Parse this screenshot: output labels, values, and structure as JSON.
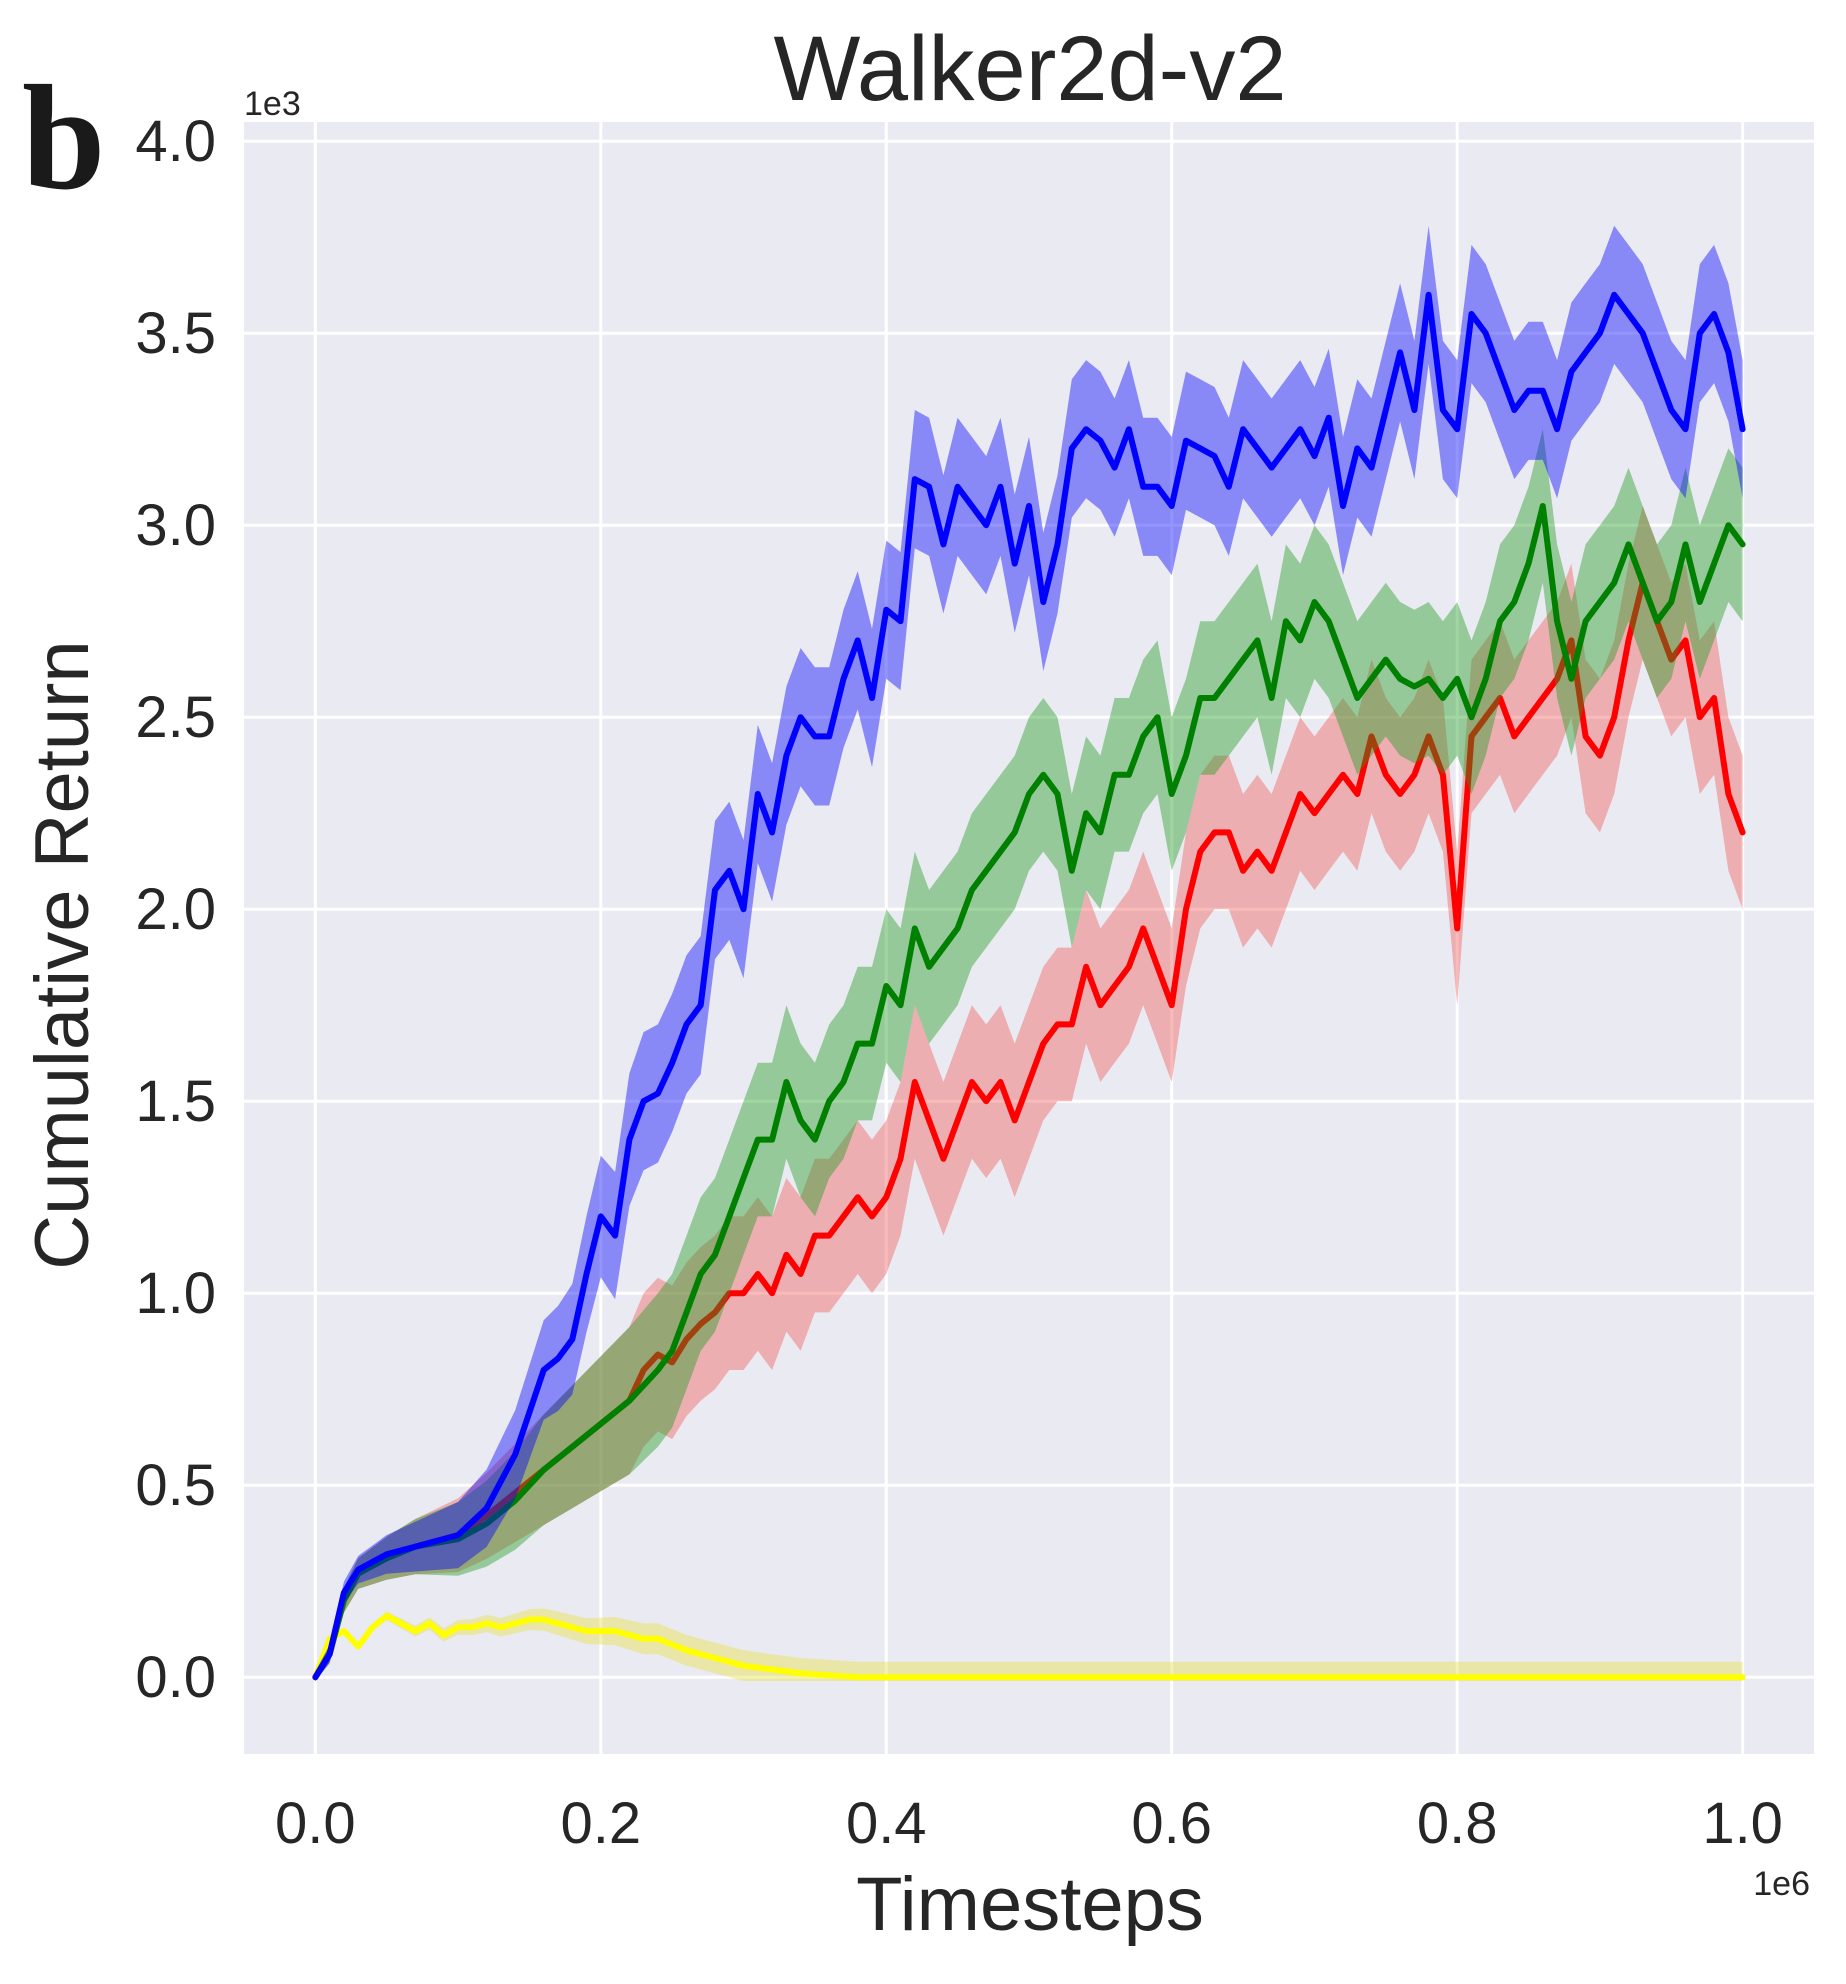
{
  "panel_label": "b",
  "chart_data": {
    "type": "line",
    "title": "Walker2d-v2",
    "xlabel": "Timesteps",
    "ylabel": "Cumulative Return",
    "x_multiplier_label": "1e6",
    "y_multiplier_label": "1e3",
    "xlim": [
      -0.05,
      1.05
    ],
    "ylim": [
      -0.2,
      4.05
    ],
    "x_ticks": [
      0.0,
      0.2,
      0.4,
      0.6,
      0.8,
      1.0
    ],
    "x_tick_labels": [
      "0.0",
      "0.2",
      "0.4",
      "0.6",
      "0.8",
      "1.0"
    ],
    "y_ticks": [
      0.0,
      0.5,
      1.0,
      1.5,
      2.0,
      2.5,
      3.0,
      3.5,
      4.0
    ],
    "y_tick_labels": [
      "0.0",
      "0.5",
      "1.0",
      "1.5",
      "2.0",
      "2.5",
      "3.0",
      "3.5",
      "4.0"
    ],
    "grid": true,
    "legend": "none",
    "background_color": "#eaeaf2",
    "grid_color": "#ffffff",
    "series": [
      {
        "name": "blue",
        "color": "#0000ff",
        "fill_color": "#0000ff",
        "x": [
          0,
          0.01,
          0.02,
          0.03,
          0.05,
          0.07,
          0.1,
          0.12,
          0.14,
          0.16,
          0.17,
          0.18,
          0.19,
          0.2,
          0.21,
          0.22,
          0.23,
          0.24,
          0.25,
          0.26,
          0.27,
          0.28,
          0.29,
          0.3,
          0.31,
          0.32,
          0.33,
          0.34,
          0.35,
          0.36,
          0.37,
          0.38,
          0.39,
          0.4,
          0.41,
          0.42,
          0.43,
          0.44,
          0.45,
          0.46,
          0.47,
          0.48,
          0.49,
          0.5,
          0.51,
          0.52,
          0.53,
          0.54,
          0.55,
          0.56,
          0.57,
          0.58,
          0.59,
          0.6,
          0.61,
          0.62,
          0.63,
          0.64,
          0.65,
          0.66,
          0.67,
          0.68,
          0.69,
          0.7,
          0.71,
          0.72,
          0.73,
          0.74,
          0.75,
          0.76,
          0.77,
          0.78,
          0.79,
          0.8,
          0.81,
          0.82,
          0.83,
          0.84,
          0.85,
          0.86,
          0.87,
          0.88,
          0.89,
          0.9,
          0.91,
          0.92,
          0.93,
          0.94,
          0.95,
          0.96,
          0.97,
          0.98,
          0.99,
          1.0
        ],
        "y": [
          0.0,
          0.06,
          0.22,
          0.28,
          0.32,
          0.34,
          0.37,
          0.44,
          0.58,
          0.8,
          0.83,
          0.88,
          1.05,
          1.2,
          1.15,
          1.4,
          1.5,
          1.52,
          1.6,
          1.7,
          1.75,
          2.05,
          2.1,
          2.0,
          2.3,
          2.2,
          2.4,
          2.5,
          2.45,
          2.45,
          2.6,
          2.7,
          2.55,
          2.78,
          2.75,
          3.12,
          3.1,
          2.95,
          3.1,
          3.05,
          3.0,
          3.1,
          2.9,
          3.05,
          2.8,
          2.95,
          3.2,
          3.25,
          3.22,
          3.15,
          3.25,
          3.1,
          3.1,
          3.05,
          3.22,
          3.2,
          3.18,
          3.1,
          3.25,
          3.2,
          3.15,
          3.2,
          3.25,
          3.18,
          3.28,
          3.05,
          3.2,
          3.15,
          3.3,
          3.45,
          3.3,
          3.6,
          3.3,
          3.25,
          3.55,
          3.5,
          3.4,
          3.3,
          3.35,
          3.35,
          3.25,
          3.4,
          3.45,
          3.5,
          3.6,
          3.55,
          3.5,
          3.4,
          3.3,
          3.25,
          3.5,
          3.55,
          3.45,
          3.25
        ],
        "band": 0.18
      },
      {
        "name": "green",
        "color": "#008000",
        "fill_color": "#1f9a1f",
        "x": [
          0,
          0.01,
          0.02,
          0.03,
          0.05,
          0.07,
          0.1,
          0.12,
          0.14,
          0.16,
          0.18,
          0.2,
          0.22,
          0.24,
          0.25,
          0.26,
          0.27,
          0.28,
          0.29,
          0.3,
          0.31,
          0.32,
          0.33,
          0.34,
          0.35,
          0.36,
          0.37,
          0.38,
          0.39,
          0.4,
          0.41,
          0.42,
          0.43,
          0.44,
          0.45,
          0.46,
          0.47,
          0.48,
          0.49,
          0.5,
          0.51,
          0.52,
          0.53,
          0.54,
          0.55,
          0.56,
          0.57,
          0.58,
          0.59,
          0.6,
          0.61,
          0.62,
          0.63,
          0.64,
          0.65,
          0.66,
          0.67,
          0.68,
          0.69,
          0.7,
          0.71,
          0.72,
          0.73,
          0.74,
          0.75,
          0.76,
          0.77,
          0.78,
          0.79,
          0.8,
          0.81,
          0.82,
          0.83,
          0.84,
          0.85,
          0.86,
          0.87,
          0.88,
          0.89,
          0.9,
          0.91,
          0.92,
          0.93,
          0.94,
          0.95,
          0.96,
          0.97,
          0.98,
          0.99,
          1.0
        ],
        "y": [
          0.0,
          0.06,
          0.2,
          0.27,
          0.31,
          0.34,
          0.36,
          0.4,
          0.46,
          0.54,
          0.6,
          0.66,
          0.72,
          0.8,
          0.85,
          0.95,
          1.05,
          1.1,
          1.2,
          1.3,
          1.4,
          1.4,
          1.55,
          1.45,
          1.4,
          1.5,
          1.55,
          1.65,
          1.65,
          1.8,
          1.75,
          1.95,
          1.85,
          1.9,
          1.95,
          2.05,
          2.1,
          2.15,
          2.2,
          2.3,
          2.35,
          2.3,
          2.1,
          2.25,
          2.2,
          2.35,
          2.35,
          2.45,
          2.5,
          2.3,
          2.4,
          2.55,
          2.55,
          2.6,
          2.65,
          2.7,
          2.55,
          2.75,
          2.7,
          2.8,
          2.75,
          2.65,
          2.55,
          2.6,
          2.65,
          2.6,
          2.58,
          2.6,
          2.55,
          2.6,
          2.5,
          2.6,
          2.75,
          2.8,
          2.9,
          3.05,
          2.75,
          2.6,
          2.75,
          2.8,
          2.85,
          2.95,
          2.85,
          2.75,
          2.8,
          2.95,
          2.8,
          2.9,
          3.0,
          2.95
        ],
        "band": 0.2
      },
      {
        "name": "red",
        "color": "#ff0000",
        "fill_color": "#f05a5a",
        "x": [
          0,
          0.01,
          0.02,
          0.03,
          0.05,
          0.07,
          0.1,
          0.12,
          0.14,
          0.16,
          0.18,
          0.2,
          0.22,
          0.23,
          0.24,
          0.25,
          0.26,
          0.27,
          0.28,
          0.29,
          0.3,
          0.31,
          0.32,
          0.33,
          0.34,
          0.35,
          0.36,
          0.37,
          0.38,
          0.39,
          0.4,
          0.41,
          0.42,
          0.43,
          0.44,
          0.45,
          0.46,
          0.47,
          0.48,
          0.49,
          0.5,
          0.51,
          0.52,
          0.53,
          0.54,
          0.55,
          0.56,
          0.57,
          0.58,
          0.59,
          0.6,
          0.61,
          0.62,
          0.63,
          0.64,
          0.65,
          0.66,
          0.67,
          0.68,
          0.69,
          0.7,
          0.71,
          0.72,
          0.73,
          0.74,
          0.75,
          0.76,
          0.77,
          0.78,
          0.79,
          0.8,
          0.81,
          0.82,
          0.83,
          0.84,
          0.85,
          0.86,
          0.87,
          0.88,
          0.89,
          0.9,
          0.91,
          0.92,
          0.93,
          0.94,
          0.95,
          0.96,
          0.97,
          0.98,
          0.99,
          1.0
        ],
        "y": [
          0.0,
          0.06,
          0.2,
          0.27,
          0.31,
          0.34,
          0.37,
          0.42,
          0.48,
          0.54,
          0.6,
          0.66,
          0.72,
          0.8,
          0.84,
          0.82,
          0.88,
          0.92,
          0.95,
          1.0,
          1.0,
          1.05,
          1.0,
          1.1,
          1.05,
          1.15,
          1.15,
          1.2,
          1.25,
          1.2,
          1.25,
          1.35,
          1.55,
          1.45,
          1.35,
          1.45,
          1.55,
          1.5,
          1.55,
          1.45,
          1.55,
          1.65,
          1.7,
          1.7,
          1.85,
          1.75,
          1.8,
          1.85,
          1.95,
          1.85,
          1.75,
          2.0,
          2.15,
          2.2,
          2.2,
          2.1,
          2.15,
          2.1,
          2.2,
          2.3,
          2.25,
          2.3,
          2.35,
          2.3,
          2.45,
          2.35,
          2.3,
          2.35,
          2.45,
          2.35,
          1.95,
          2.45,
          2.5,
          2.55,
          2.45,
          2.5,
          2.55,
          2.6,
          2.7,
          2.45,
          2.4,
          2.5,
          2.7,
          2.85,
          2.75,
          2.65,
          2.7,
          2.5,
          2.55,
          2.3,
          2.2
        ],
        "band": 0.2
      },
      {
        "name": "yellow",
        "color": "#ffff00",
        "fill_color": "#e8e040",
        "x": [
          0,
          0.01,
          0.02,
          0.03,
          0.04,
          0.05,
          0.06,
          0.07,
          0.08,
          0.09,
          0.1,
          0.11,
          0.12,
          0.13,
          0.14,
          0.15,
          0.16,
          0.17,
          0.18,
          0.19,
          0.2,
          0.21,
          0.22,
          0.23,
          0.24,
          0.26,
          0.28,
          0.3,
          0.32,
          0.34,
          0.36,
          0.38,
          0.4,
          0.45,
          0.5,
          0.6,
          0.7,
          0.8,
          0.9,
          1.0
        ],
        "y": [
          0.0,
          0.1,
          0.12,
          0.08,
          0.13,
          0.16,
          0.14,
          0.12,
          0.14,
          0.11,
          0.13,
          0.13,
          0.14,
          0.13,
          0.14,
          0.15,
          0.15,
          0.14,
          0.13,
          0.12,
          0.12,
          0.12,
          0.11,
          0.1,
          0.1,
          0.07,
          0.05,
          0.03,
          0.02,
          0.01,
          0.005,
          0.0,
          0.0,
          0.0,
          0.0,
          0.0,
          0.0,
          0.0,
          0.0,
          0.0
        ],
        "band": 0.04
      }
    ]
  }
}
